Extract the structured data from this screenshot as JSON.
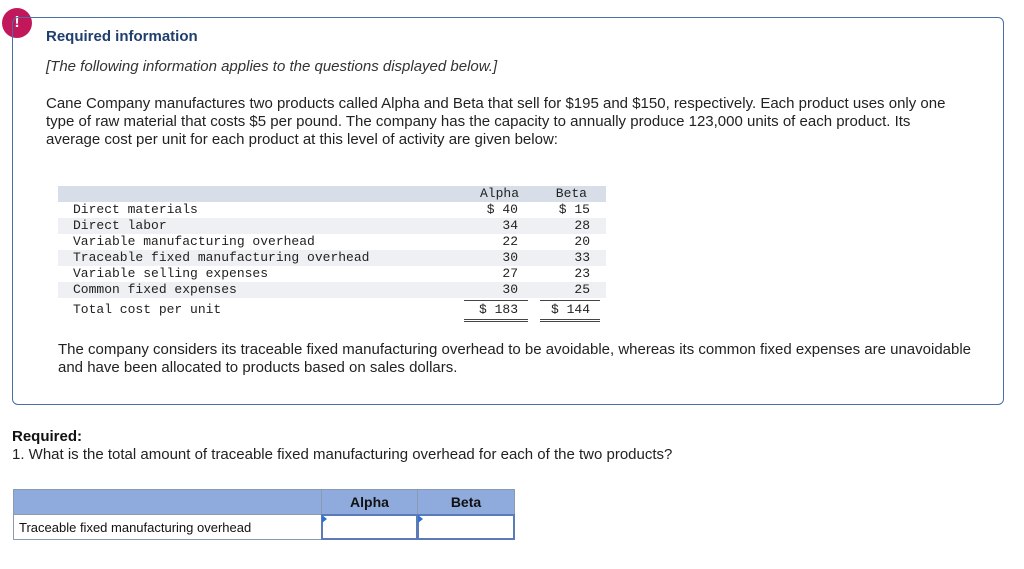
{
  "alert_symbol": "!",
  "required_info": {
    "title": "Required information",
    "note": "[The following information applies to the questions displayed below.]",
    "paragraph": "Cane Company manufactures two products called Alpha and Beta that sell for $195 and $150, respectively. Each product uses only one type of raw material that costs $5 per pound. The company has the capacity to annually produce 123,000 units of each product. Its average cost per unit for each product at this level of activity are given below:"
  },
  "cost_table": {
    "headers": [
      "Alpha",
      "Beta"
    ],
    "rows": [
      {
        "label": "Direct materials",
        "alpha": "$ 40",
        "beta": "$ 15"
      },
      {
        "label": "Direct labor",
        "alpha": "34",
        "beta": "28"
      },
      {
        "label": "Variable manufacturing overhead",
        "alpha": "22",
        "beta": "20"
      },
      {
        "label": "Traceable fixed manufacturing overhead",
        "alpha": "30",
        "beta": "33"
      },
      {
        "label": "Variable selling expenses",
        "alpha": "27",
        "beta": "23"
      },
      {
        "label": "Common fixed expenses",
        "alpha": "30",
        "beta": "25"
      }
    ],
    "total": {
      "label": "Total cost per unit",
      "alpha": "$ 183",
      "beta": "$ 144"
    }
  },
  "closing_paragraph": "The company considers its traceable fixed manufacturing overhead to be avoidable, whereas its common fixed expenses are unavoidable and have been allocated to products based on sales dollars.",
  "required": {
    "title": "Required:",
    "question": "1. What is the total amount of traceable fixed manufacturing overhead for each of the two products?"
  },
  "answer_table": {
    "headers": [
      "Alpha",
      "Beta"
    ],
    "row_label": "Traceable fixed manufacturing overhead",
    "alpha_value": "",
    "beta_value": ""
  },
  "colors": {
    "alert": "#c2185b",
    "box_border": "#4a6fa5",
    "title_blue": "#1f3f6e",
    "answer_header": "#8faadc"
  }
}
